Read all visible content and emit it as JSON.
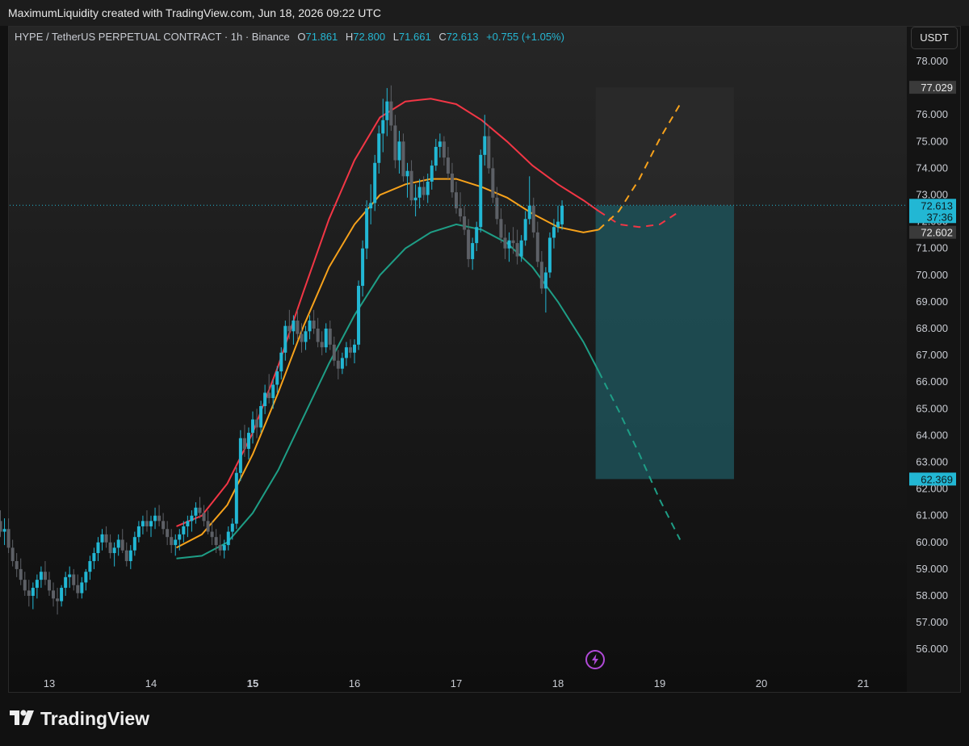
{
  "header": {
    "attribution": "MaximumLiquidity created with TradingView.com, Jun 18, 2026 09:22 UTC"
  },
  "legend": {
    "symbol": "HYPE / TetherUS PERPETUAL CONTRACT · 1h · Binance",
    "open_key": "O",
    "open": "71.861",
    "high_key": "H",
    "high": "72.800",
    "low_key": "L",
    "low": "71.661",
    "close_key": "C",
    "close": "72.613",
    "change": "+0.755 (+1.05%)"
  },
  "currency_button": "USDT",
  "footer": {
    "brand": "TradingView"
  },
  "icons": {
    "logo": "tradingview-logo-icon",
    "bolt": "lightning-bolt-icon"
  },
  "colors": {
    "up_candle": "#22b7d4",
    "down_candle": "#5d6066",
    "red_curve": "#f23645",
    "orange_curve": "#f7a21b",
    "green_curve": "#1e9e86",
    "target_zone": "#1f5a62",
    "stop_zone": "#2a2a2a",
    "price_line": "#22b7d4"
  },
  "chart_data": {
    "type": "candlestick",
    "timeframe": "1h",
    "y_axis_ticks": [
      "78.000",
      "77.000",
      "76.000",
      "75.000",
      "74.000",
      "73.000",
      "72.000",
      "71.000",
      "70.000",
      "69.000",
      "68.000",
      "67.000",
      "66.000",
      "65.000",
      "64.000",
      "63.000",
      "62.000",
      "61.000",
      "60.000",
      "59.000",
      "58.000",
      "57.000",
      "56.000"
    ],
    "y_tick_values": [
      78,
      77,
      76,
      75,
      74,
      73,
      72,
      71,
      70,
      69,
      68,
      67,
      66,
      65,
      64,
      63,
      62,
      61,
      60,
      59,
      58,
      57,
      56
    ],
    "x_axis_labels": [
      {
        "label": "13",
        "x": 13
      },
      {
        "label": "14",
        "x": 14
      },
      {
        "label": "15",
        "x": 15,
        "bold": true
      },
      {
        "label": "16",
        "x": 16
      },
      {
        "label": "17",
        "x": 17
      },
      {
        "label": "18",
        "x": 18
      },
      {
        "label": "19",
        "x": 19
      },
      {
        "label": "20",
        "x": 20
      },
      {
        "label": "21",
        "x": 21
      }
    ],
    "price_labels": [
      {
        "text": "77.029",
        "value": 77.029,
        "style": "gray"
      },
      {
        "text": "72.613",
        "value": 72.613,
        "style": "cyan"
      },
      {
        "text": "37:36",
        "value": 72.613,
        "style": "cyan-sub"
      },
      {
        "text": "72.602",
        "value": 72.602,
        "style": "gray"
      },
      {
        "text": "62.369",
        "value": 62.369,
        "style": "cyan"
      }
    ],
    "current_price": 72.613,
    "position": {
      "entry": 72.602,
      "stop": 77.029,
      "target": 62.369,
      "x_start": 18.37,
      "x_end": 19.73
    },
    "curves": [
      {
        "name": "upper",
        "color": "#f23645",
        "points": [
          [
            14.25,
            60.6
          ],
          [
            14.5,
            61.0
          ],
          [
            14.75,
            62.2
          ],
          [
            15.0,
            64.1
          ],
          [
            15.25,
            66.6
          ],
          [
            15.5,
            69.4
          ],
          [
            15.75,
            72.1
          ],
          [
            16.0,
            74.3
          ],
          [
            16.25,
            75.9
          ],
          [
            16.5,
            76.5
          ],
          [
            16.75,
            76.6
          ],
          [
            17.0,
            76.4
          ],
          [
            17.25,
            75.8
          ],
          [
            17.5,
            75.0
          ],
          [
            17.75,
            74.1
          ],
          [
            18.0,
            73.4
          ],
          [
            18.25,
            72.8
          ],
          [
            18.4,
            72.4
          ]
        ]
      },
      {
        "name": "middle",
        "color": "#f7a21b",
        "points": [
          [
            14.25,
            59.8
          ],
          [
            14.5,
            60.3
          ],
          [
            14.75,
            61.4
          ],
          [
            15.0,
            63.3
          ],
          [
            15.25,
            65.6
          ],
          [
            15.5,
            68.1
          ],
          [
            15.75,
            70.3
          ],
          [
            16.0,
            71.9
          ],
          [
            16.25,
            73.0
          ],
          [
            16.5,
            73.4
          ],
          [
            16.75,
            73.6
          ],
          [
            17.0,
            73.6
          ],
          [
            17.25,
            73.3
          ],
          [
            17.5,
            72.9
          ],
          [
            17.75,
            72.3
          ],
          [
            18.0,
            71.8
          ],
          [
            18.25,
            71.6
          ],
          [
            18.4,
            71.7
          ]
        ]
      },
      {
        "name": "lower",
        "color": "#1e9e86",
        "points": [
          [
            14.25,
            59.4
          ],
          [
            14.5,
            59.5
          ],
          [
            14.75,
            60.0
          ],
          [
            15.0,
            61.1
          ],
          [
            15.25,
            62.7
          ],
          [
            15.5,
            64.7
          ],
          [
            15.75,
            66.7
          ],
          [
            16.0,
            68.5
          ],
          [
            16.25,
            70.0
          ],
          [
            16.5,
            71.0
          ],
          [
            16.75,
            71.6
          ],
          [
            17.0,
            71.9
          ],
          [
            17.25,
            71.7
          ],
          [
            17.5,
            71.2
          ],
          [
            17.75,
            70.3
          ],
          [
            18.0,
            69.0
          ],
          [
            18.25,
            67.5
          ],
          [
            18.4,
            66.4
          ]
        ]
      }
    ],
    "projections": [
      {
        "name": "upper-proj",
        "color": "#f23645",
        "points": [
          [
            18.4,
            72.4
          ],
          [
            18.6,
            71.9
          ],
          [
            18.8,
            71.8
          ],
          [
            19.0,
            71.9
          ],
          [
            19.2,
            72.4
          ]
        ]
      },
      {
        "name": "middle-proj",
        "color": "#f7a21b",
        "points": [
          [
            18.4,
            71.7
          ],
          [
            18.6,
            72.4
          ],
          [
            18.8,
            73.6
          ],
          [
            19.0,
            75.1
          ],
          [
            19.2,
            76.4
          ]
        ]
      },
      {
        "name": "lower-proj",
        "color": "#1e9e86",
        "points": [
          [
            18.4,
            66.4
          ],
          [
            18.6,
            64.9
          ],
          [
            18.8,
            63.3
          ],
          [
            19.0,
            61.6
          ],
          [
            19.2,
            60.1
          ]
        ]
      }
    ],
    "candles": [
      [
        12.4,
        60.0,
        60.8,
        59.7,
        60.6
      ],
      [
        12.44,
        60.6,
        61.3,
        60.3,
        61.0
      ],
      [
        12.48,
        61.0,
        61.6,
        60.5,
        60.8
      ],
      [
        12.52,
        60.8,
        61.2,
        60.2,
        60.4
      ],
      [
        12.56,
        60.4,
        60.9,
        59.9,
        60.5
      ],
      [
        12.6,
        60.5,
        60.9,
        59.6,
        59.8
      ],
      [
        12.64,
        59.8,
        60.1,
        59.1,
        59.3
      ],
      [
        12.68,
        59.3,
        59.6,
        58.7,
        59.0
      ],
      [
        12.72,
        59.0,
        59.4,
        58.4,
        58.6
      ],
      [
        12.76,
        58.6,
        58.9,
        58.0,
        58.2
      ],
      [
        12.8,
        58.2,
        58.6,
        57.6,
        58.0
      ],
      [
        12.84,
        58.0,
        58.5,
        57.5,
        58.3
      ],
      [
        12.88,
        58.3,
        58.8,
        57.9,
        58.6
      ],
      [
        12.92,
        58.6,
        59.1,
        58.3,
        58.9
      ],
      [
        12.96,
        58.9,
        59.3,
        58.4,
        58.6
      ],
      [
        13.0,
        58.6,
        58.9,
        58.0,
        58.2
      ],
      [
        13.04,
        58.2,
        58.5,
        57.6,
        57.9
      ],
      [
        13.08,
        57.9,
        58.3,
        57.3,
        57.8
      ],
      [
        13.12,
        57.8,
        58.4,
        57.6,
        58.3
      ],
      [
        13.16,
        58.3,
        58.9,
        58.0,
        58.7
      ],
      [
        13.2,
        58.7,
        59.1,
        58.3,
        58.8
      ],
      [
        13.24,
        58.8,
        59.0,
        58.2,
        58.4
      ],
      [
        13.28,
        58.4,
        58.8,
        57.9,
        58.1
      ],
      [
        13.32,
        58.1,
        58.7,
        57.9,
        58.5
      ],
      [
        13.36,
        58.5,
        59.0,
        58.2,
        58.9
      ],
      [
        13.4,
        58.9,
        59.5,
        58.6,
        59.3
      ],
      [
        13.44,
        59.3,
        59.8,
        59.0,
        59.6
      ],
      [
        13.48,
        59.6,
        60.2,
        59.3,
        60.0
      ],
      [
        13.52,
        60.0,
        60.5,
        59.7,
        60.3
      ],
      [
        13.56,
        60.3,
        60.6,
        59.8,
        60.0
      ],
      [
        13.6,
        60.0,
        60.3,
        59.4,
        59.6
      ],
      [
        13.64,
        59.6,
        60.0,
        59.1,
        59.8
      ],
      [
        13.68,
        59.8,
        60.3,
        59.5,
        60.1
      ],
      [
        13.72,
        60.1,
        60.5,
        59.6,
        59.7
      ],
      [
        13.76,
        59.7,
        60.0,
        59.1,
        59.3
      ],
      [
        13.8,
        59.3,
        59.9,
        59.0,
        59.7
      ],
      [
        13.84,
        59.7,
        60.4,
        59.5,
        60.2
      ],
      [
        13.88,
        60.2,
        60.8,
        60.0,
        60.6
      ],
      [
        13.92,
        60.6,
        61.0,
        60.3,
        60.8
      ],
      [
        13.96,
        60.8,
        61.2,
        60.4,
        60.6
      ],
      [
        14.0,
        60.6,
        61.0,
        60.2,
        60.8
      ],
      [
        14.04,
        60.8,
        61.3,
        60.5,
        61.0
      ],
      [
        14.08,
        61.0,
        61.4,
        60.6,
        60.8
      ],
      [
        14.12,
        60.8,
        61.1,
        60.3,
        60.5
      ],
      [
        14.16,
        60.5,
        60.8,
        59.9,
        60.2
      ],
      [
        14.2,
        60.2,
        60.5,
        59.6,
        59.9
      ],
      [
        14.24,
        59.9,
        60.3,
        59.5,
        60.1
      ],
      [
        14.28,
        60.1,
        60.5,
        59.7,
        60.3
      ],
      [
        14.32,
        60.3,
        60.8,
        60.0,
        60.6
      ],
      [
        14.36,
        60.6,
        61.0,
        60.2,
        60.8
      ],
      [
        14.4,
        60.8,
        61.2,
        60.4,
        61.0
      ],
      [
        14.44,
        61.0,
        61.5,
        60.7,
        61.3
      ],
      [
        14.48,
        61.3,
        61.7,
        60.9,
        61.1
      ],
      [
        14.52,
        61.1,
        61.4,
        60.6,
        60.8
      ],
      [
        14.56,
        60.8,
        61.2,
        60.3,
        60.4
      ],
      [
        14.6,
        60.4,
        60.8,
        59.9,
        60.2
      ],
      [
        14.64,
        60.2,
        60.5,
        59.6,
        59.9
      ],
      [
        14.68,
        59.9,
        60.3,
        59.5,
        59.7
      ],
      [
        14.72,
        59.7,
        60.1,
        59.4,
        59.9
      ],
      [
        14.76,
        59.9,
        60.6,
        59.7,
        60.4
      ],
      [
        14.8,
        60.4,
        60.9,
        60.1,
        60.7
      ],
      [
        14.84,
        60.7,
        62.8,
        60.5,
        62.6
      ],
      [
        14.88,
        62.6,
        64.2,
        62.3,
        63.9
      ],
      [
        14.92,
        63.9,
        64.4,
        63.2,
        63.5
      ],
      [
        14.96,
        63.5,
        64.3,
        63.1,
        64.1
      ],
      [
        15.0,
        64.1,
        64.9,
        63.7,
        64.6
      ],
      [
        15.04,
        64.6,
        65.0,
        63.9,
        64.3
      ],
      [
        15.08,
        64.3,
        65.3,
        64.1,
        65.1
      ],
      [
        15.12,
        65.1,
        65.9,
        64.8,
        65.6
      ],
      [
        15.16,
        65.6,
        66.3,
        65.2,
        65.4
      ],
      [
        15.2,
        65.4,
        66.1,
        65.0,
        65.9
      ],
      [
        15.24,
        65.9,
        66.6,
        65.6,
        66.4
      ],
      [
        15.28,
        66.4,
        67.3,
        66.1,
        67.1
      ],
      [
        15.32,
        67.1,
        68.3,
        66.8,
        68.1
      ],
      [
        15.36,
        68.1,
        68.7,
        67.6,
        67.9
      ],
      [
        15.4,
        67.9,
        68.5,
        67.4,
        68.3
      ],
      [
        15.44,
        68.3,
        68.7,
        67.6,
        67.8
      ],
      [
        15.48,
        67.8,
        68.2,
        67.1,
        67.5
      ],
      [
        15.52,
        67.5,
        68.1,
        67.2,
        67.9
      ],
      [
        15.56,
        67.9,
        68.5,
        67.6,
        68.3
      ],
      [
        15.6,
        68.3,
        68.7,
        67.8,
        68.0
      ],
      [
        15.64,
        68.0,
        68.4,
        67.3,
        67.5
      ],
      [
        15.68,
        67.5,
        67.9,
        67.0,
        67.3
      ],
      [
        15.72,
        67.3,
        68.2,
        67.1,
        68.0
      ],
      [
        15.76,
        68.0,
        68.3,
        67.2,
        67.4
      ],
      [
        15.8,
        67.4,
        67.7,
        66.6,
        66.8
      ],
      [
        15.84,
        66.8,
        67.2,
        66.1,
        66.5
      ],
      [
        15.88,
        66.5,
        67.1,
        66.3,
        66.9
      ],
      [
        15.92,
        66.9,
        67.5,
        66.6,
        67.3
      ],
      [
        15.96,
        67.3,
        67.6,
        66.9,
        67.1
      ],
      [
        16.0,
        67.1,
        67.6,
        66.7,
        67.4
      ],
      [
        16.04,
        67.4,
        69.8,
        67.2,
        69.6
      ],
      [
        16.08,
        69.6,
        71.3,
        69.2,
        71.0
      ],
      [
        16.12,
        71.0,
        72.8,
        70.6,
        72.5
      ],
      [
        16.16,
        72.5,
        73.4,
        71.9,
        72.7
      ],
      [
        16.2,
        72.7,
        74.5,
        72.4,
        74.2
      ],
      [
        16.24,
        74.2,
        75.6,
        73.8,
        75.3
      ],
      [
        16.28,
        75.3,
        76.6,
        74.6,
        75.8
      ],
      [
        16.32,
        75.8,
        77.0,
        75.2,
        76.5
      ],
      [
        16.36,
        76.5,
        77.1,
        75.4,
        75.6
      ],
      [
        16.4,
        75.6,
        76.0,
        74.0,
        74.3
      ],
      [
        16.44,
        74.3,
        75.4,
        73.8,
        75.0
      ],
      [
        16.48,
        75.0,
        75.3,
        73.5,
        73.7
      ],
      [
        16.52,
        73.7,
        74.2,
        72.9,
        73.9
      ],
      [
        16.56,
        73.9,
        74.3,
        72.6,
        72.8
      ],
      [
        16.6,
        72.8,
        73.4,
        72.2,
        72.9
      ],
      [
        16.64,
        72.9,
        73.6,
        72.5,
        73.3
      ],
      [
        16.68,
        73.3,
        73.7,
        72.8,
        73.0
      ],
      [
        16.72,
        73.0,
        73.8,
        72.7,
        73.5
      ],
      [
        16.76,
        73.5,
        74.3,
        73.2,
        74.1
      ],
      [
        16.8,
        74.1,
        75.1,
        73.9,
        74.8
      ],
      [
        16.84,
        74.8,
        75.3,
        74.4,
        75.0
      ],
      [
        16.88,
        75.0,
        75.2,
        74.1,
        74.4
      ],
      [
        16.92,
        74.4,
        74.8,
        73.6,
        73.8
      ],
      [
        16.96,
        73.8,
        74.2,
        72.9,
        73.1
      ],
      [
        17.0,
        73.1,
        73.5,
        72.3,
        72.5
      ],
      [
        17.04,
        72.5,
        73.1,
        72.0,
        72.2
      ],
      [
        17.08,
        72.2,
        72.6,
        71.5,
        71.7
      ],
      [
        17.12,
        71.7,
        72.1,
        70.3,
        70.6
      ],
      [
        17.16,
        70.6,
        71.4,
        70.2,
        71.2
      ],
      [
        17.2,
        71.2,
        72.0,
        70.9,
        71.8
      ],
      [
        17.24,
        71.8,
        74.7,
        71.6,
        74.5
      ],
      [
        17.28,
        74.5,
        76.0,
        74.1,
        75.2
      ],
      [
        17.32,
        75.2,
        75.6,
        73.8,
        74.0
      ],
      [
        17.36,
        74.0,
        74.4,
        72.7,
        72.9
      ],
      [
        17.4,
        72.9,
        73.3,
        71.9,
        72.1
      ],
      [
        17.44,
        72.1,
        72.5,
        71.2,
        71.4
      ],
      [
        17.48,
        71.4,
        71.9,
        70.6,
        71.0
      ],
      [
        17.52,
        71.0,
        71.6,
        70.5,
        71.3
      ],
      [
        17.56,
        71.3,
        71.8,
        70.8,
        71.2
      ],
      [
        17.6,
        71.2,
        71.7,
        70.4,
        70.7
      ],
      [
        17.64,
        70.7,
        71.5,
        70.5,
        71.3
      ],
      [
        17.68,
        71.3,
        72.4,
        71.1,
        72.1
      ],
      [
        17.72,
        72.1,
        73.7,
        71.9,
        72.6
      ],
      [
        17.76,
        72.6,
        72.9,
        71.4,
        71.6
      ],
      [
        17.8,
        71.6,
        72.0,
        70.3,
        70.5
      ],
      [
        17.84,
        70.5,
        70.9,
        69.3,
        69.5
      ],
      [
        17.88,
        69.5,
        70.3,
        68.6,
        70.1
      ],
      [
        17.92,
        70.1,
        71.6,
        69.9,
        71.4
      ],
      [
        17.96,
        71.4,
        72.1,
        71.0,
        71.8
      ],
      [
        18.0,
        71.8,
        72.6,
        71.6,
        72.0
      ],
      [
        18.04,
        71.9,
        72.8,
        71.7,
        72.6
      ]
    ]
  }
}
